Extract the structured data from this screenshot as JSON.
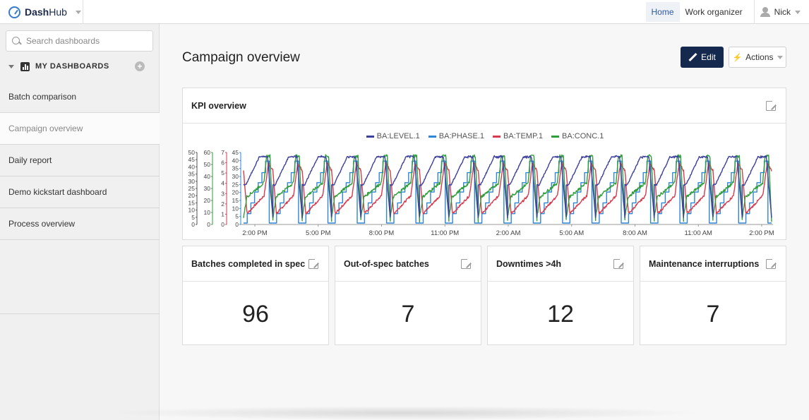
{
  "app": {
    "brand_prefix": "Dash",
    "brand_suffix": "Hub"
  },
  "topnav": {
    "items": [
      {
        "label": "Home",
        "active": true
      },
      {
        "label": "Work organizer",
        "active": false
      }
    ],
    "user": "Nick"
  },
  "sidebar": {
    "search_placeholder": "Search dashboards",
    "section_title": "MY DASHBOARDS",
    "items": [
      {
        "label": "Batch comparison"
      },
      {
        "label": "Campaign overview",
        "active": true
      },
      {
        "label": "Daily report"
      },
      {
        "label": "Demo kickstart dashboard"
      },
      {
        "label": "Process overview"
      }
    ]
  },
  "main": {
    "title": "Campaign overview",
    "edit_label": "Edit",
    "actions_label": "Actions",
    "kpi_card": {
      "title": "KPI overview"
    },
    "stats": [
      {
        "title": "Batches completed in spec",
        "value": "96"
      },
      {
        "title": "Out-of-spec batches",
        "value": "7"
      },
      {
        "title": "Downtimes >4h",
        "value": "12"
      },
      {
        "title": "Maintenance interruptions",
        "value": "7"
      }
    ]
  },
  "colors": {
    "accent_dark": "#14294d",
    "level": "#3b3f9e",
    "phase": "#2f86d6",
    "temp": "#d83a4e",
    "conc": "#2e9e3a"
  },
  "chart_data": {
    "type": "line",
    "series": [
      {
        "name": "BA:LEVEL.1",
        "color": "#3b3f9e",
        "axis_max": 45
      },
      {
        "name": "BA:PHASE.1",
        "color": "#2f86d6",
        "axis_max": 7
      },
      {
        "name": "BA:TEMP.1",
        "color": "#d83a4e",
        "axis_max": 60
      },
      {
        "name": "BA:CONC.1",
        "color": "#2e9e3a",
        "axis_max": 50
      }
    ],
    "y_axes": [
      {
        "ticks": [
          "50",
          "45",
          "40",
          "35",
          "30",
          "25",
          "20",
          "15",
          "10",
          "5",
          "0"
        ]
      },
      {
        "ticks": [
          "60",
          "50",
          "40",
          "30",
          "20",
          "10",
          "0"
        ]
      },
      {
        "ticks": [
          "7",
          "6",
          "5",
          "4",
          "3",
          "2",
          "1",
          "0"
        ]
      },
      {
        "ticks": [
          "45",
          "40",
          "35",
          "30",
          "25",
          "20",
          "15",
          "10",
          "5",
          "0"
        ]
      }
    ],
    "x_ticks": [
      "2:00 PM",
      "5:00 PM",
      "8:00 PM",
      "11:00 PM",
      "2:00 AM",
      "5:00 AM",
      "8:00 AM",
      "11:00 AM",
      "2:00 PM"
    ],
    "cycles": 18,
    "legend_position": "top"
  }
}
